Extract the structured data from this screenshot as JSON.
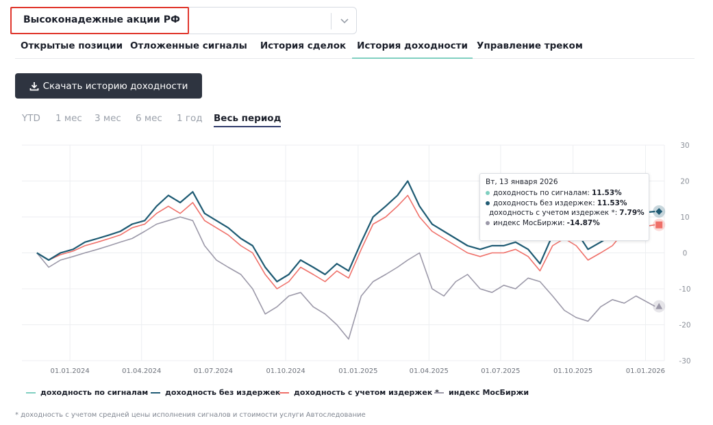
{
  "selector": {
    "value": "Высоконадежные акции РФ"
  },
  "tabs": [
    {
      "label": "Открытые позиции",
      "active": false
    },
    {
      "label": "Отложенные сигналы",
      "active": false
    },
    {
      "label": "История сделок",
      "active": false
    },
    {
      "label": "История доходности",
      "active": true
    },
    {
      "label": "Управление треком",
      "active": false
    }
  ],
  "download_button": {
    "label": "Скачать историю доходности",
    "icon": "download-icon"
  },
  "periods": [
    {
      "label": "YTD",
      "active": false
    },
    {
      "label": "1 мес",
      "active": false
    },
    {
      "label": "3 мес",
      "active": false
    },
    {
      "label": "6 мес",
      "active": false
    },
    {
      "label": "1 год",
      "active": false
    },
    {
      "label": "Весь период",
      "active": true
    }
  ],
  "tooltip": {
    "date": "Вт, 13 января 2026",
    "rows": [
      {
        "label": "доходность по сигналам:",
        "value": "11.53%",
        "color": "#7fcfc0"
      },
      {
        "label": "доходность без издержек:",
        "value": "11.53%",
        "color": "#1f5a73"
      },
      {
        "label": "доходность с учетом издержек *:",
        "value": "7.79%",
        "color": "#ef6f68"
      },
      {
        "label": "индекс МосБиржи:",
        "value": "-14.87%",
        "color": "#9b98a8"
      }
    ]
  },
  "footnote": "* доходность с учетом средней цены исполнения сигналов и стоимости услуги Автоследование",
  "chart_data": {
    "type": "line",
    "ylim": [
      -30,
      30
    ],
    "y_ticks": [
      "30",
      "20",
      "10",
      "0",
      "-10",
      "-20",
      "-30"
    ],
    "x_ticks": [
      "01.01.2024",
      "01.04.2024",
      "01.07.2024",
      "01.10.2024",
      "01.01.2025",
      "01.04.2025",
      "01.07.2025",
      "01.10.2025",
      "01.01.2026"
    ],
    "x": [
      "2023-11-20",
      "2023-12-05",
      "2023-12-20",
      "2024-01-05",
      "2024-01-20",
      "2024-02-05",
      "2024-02-20",
      "2024-03-05",
      "2024-03-20",
      "2024-04-05",
      "2024-04-20",
      "2024-05-05",
      "2024-05-20",
      "2024-06-05",
      "2024-06-20",
      "2024-07-05",
      "2024-07-20",
      "2024-08-05",
      "2024-08-20",
      "2024-09-05",
      "2024-09-20",
      "2024-10-05",
      "2024-10-20",
      "2024-11-05",
      "2024-11-20",
      "2024-12-05",
      "2024-12-20",
      "2025-01-05",
      "2025-01-20",
      "2025-02-05",
      "2025-02-20",
      "2025-03-05",
      "2025-03-20",
      "2025-04-05",
      "2025-04-20",
      "2025-05-05",
      "2025-05-20",
      "2025-06-05",
      "2025-06-20",
      "2025-07-05",
      "2025-07-20",
      "2025-08-05",
      "2025-08-20",
      "2025-09-05",
      "2025-09-20",
      "2025-10-05",
      "2025-10-20",
      "2025-11-05",
      "2025-11-20",
      "2025-12-05",
      "2025-12-20",
      "2026-01-13"
    ],
    "series": [
      {
        "name": "доходность по сигналам",
        "color": "#7fcfc0",
        "values": [
          0,
          -2,
          0,
          1,
          3,
          4,
          5,
          6,
          8,
          9,
          13,
          16,
          14,
          17,
          11,
          9,
          7,
          4,
          2,
          -4,
          -8,
          -6,
          -2,
          -4,
          -6,
          -3,
          -5,
          3,
          10,
          13,
          16,
          20,
          13,
          8,
          6,
          4,
          2,
          1,
          2,
          2,
          3,
          1,
          -3,
          5,
          8,
          6,
          1,
          3,
          5,
          10,
          11,
          11.53
        ]
      },
      {
        "name": "доходность без издержек",
        "color": "#1f5a73",
        "values": [
          0,
          -2,
          0,
          1,
          3,
          4,
          5,
          6,
          8,
          9,
          13,
          16,
          14,
          17,
          11,
          9,
          7,
          4,
          2,
          -4,
          -8,
          -6,
          -2,
          -4,
          -6,
          -3,
          -5,
          3,
          10,
          13,
          16,
          20,
          13,
          8,
          6,
          4,
          2,
          1,
          2,
          2,
          3,
          1,
          -3,
          5,
          8,
          6,
          1,
          3,
          5,
          10,
          11,
          11.53
        ]
      },
      {
        "name": "доходность с учетом издержек *",
        "color": "#ef6f68",
        "values": [
          0,
          -2,
          -0.5,
          0.5,
          2,
          3,
          4,
          5,
          7,
          8,
          11,
          13,
          11,
          14,
          9,
          7,
          5,
          2,
          0,
          -6,
          -10,
          -8,
          -4,
          -6,
          -8,
          -5,
          -7,
          1,
          8,
          10,
          13,
          16,
          10,
          6,
          4,
          2,
          0,
          -1,
          0,
          0,
          1,
          -1,
          -5,
          2,
          4,
          2,
          -2,
          0,
          2,
          6,
          7,
          7.79
        ]
      },
      {
        "name": "индекс МосБиржи",
        "color": "#9b98a8",
        "values": [
          0,
          -4,
          -2,
          -1,
          0,
          1,
          2,
          3,
          4,
          6,
          8,
          9,
          10,
          9,
          2,
          -2,
          -4,
          -6,
          -10,
          -17,
          -15,
          -12,
          -11,
          -15,
          -17,
          -20,
          -24,
          -12,
          -8,
          -6,
          -4,
          -2,
          0,
          -10,
          -12,
          -8,
          -6,
          -10,
          -11,
          -9,
          -10,
          -7,
          -8,
          -12,
          -16,
          -18,
          -19,
          -15,
          -13,
          -14,
          -12,
          -14.87
        ]
      }
    ],
    "end_markers": [
      {
        "series": 1,
        "shape": "diamond"
      },
      {
        "series": 2,
        "shape": "square"
      },
      {
        "series": 3,
        "shape": "triangle"
      }
    ],
    "grid": true,
    "legend": "bottom"
  }
}
